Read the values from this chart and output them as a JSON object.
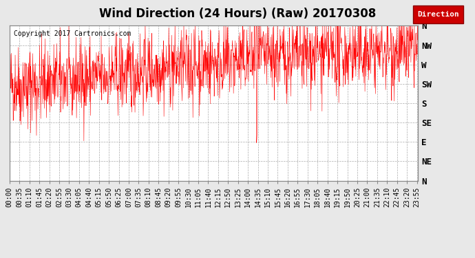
{
  "title": "Wind Direction (24 Hours) (Raw) 20170308",
  "copyright": "Copyright 2017 Cartronics.com",
  "legend_label": "Direction",
  "line_color": "#ff0000",
  "bg_color": "#e8e8e8",
  "plot_bg": "#ffffff",
  "grid_color": "#aaaaaa",
  "ytick_labels": [
    "N",
    "NW",
    "W",
    "SW",
    "S",
    "SE",
    "E",
    "NE",
    "N"
  ],
  "ytick_values": [
    360,
    315,
    270,
    225,
    180,
    135,
    90,
    45,
    0
  ],
  "ylim": [
    0,
    360
  ],
  "num_points": 1440,
  "seed": 42,
  "title_fontsize": 12,
  "copyright_fontsize": 7,
  "tick_fontsize": 7
}
